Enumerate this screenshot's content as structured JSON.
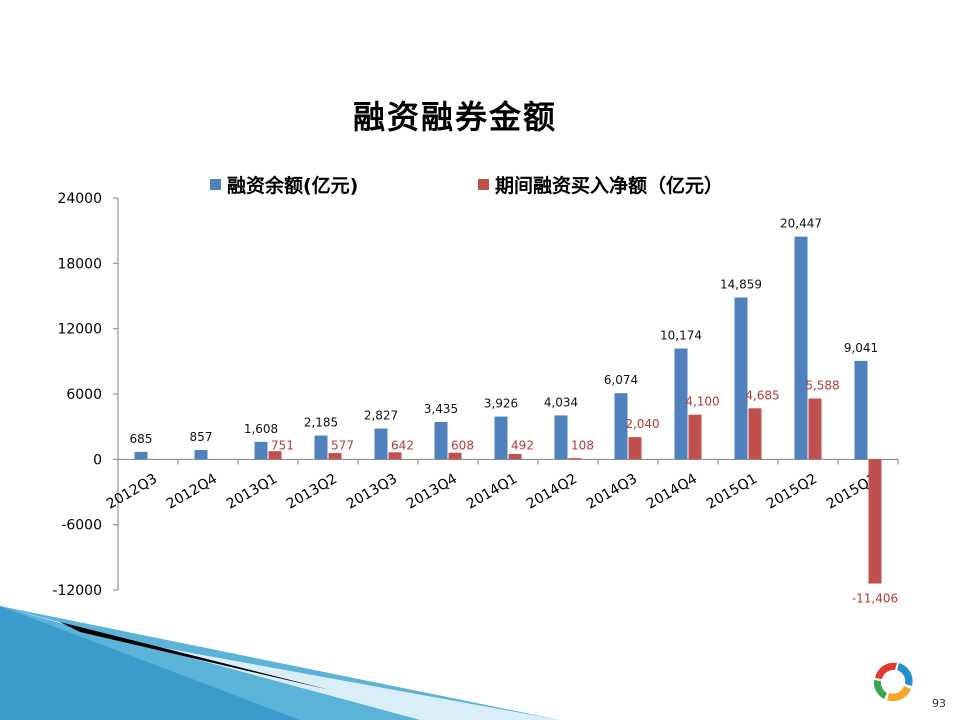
{
  "page": {
    "number": "93"
  },
  "colors": {
    "series1": "#4f81bd",
    "series2": "#c0504d",
    "axis": "#7f7f7f"
  },
  "icons": [
    "corner-swoosh-decoration",
    "logo-ring-icon"
  ],
  "chart_data": {
    "type": "bar",
    "title": "融资融券金额",
    "categories": [
      "2012Q3",
      "2012Q4",
      "2013Q1",
      "2013Q2",
      "2013Q3",
      "2013Q4",
      "2014Q1",
      "2014Q2",
      "2014Q3",
      "2014Q4",
      "2015Q1",
      "2015Q2",
      "2015Q3"
    ],
    "series": [
      {
        "name": "融资余额(亿元)",
        "values": [
          685,
          857,
          1608,
          2185,
          2827,
          3435,
          3926,
          4034,
          6074,
          10174,
          14859,
          20447,
          9041
        ],
        "labels": [
          "685",
          "857",
          "1,608",
          "2,185",
          "2,827",
          "3,435",
          "3,926",
          "4,034",
          "6,074",
          "10,174",
          "14,859",
          "20,447",
          "9,041"
        ]
      },
      {
        "name": "期间融资买入净额（亿元）",
        "values": [
          null,
          null,
          751,
          577,
          642,
          608,
          492,
          108,
          2040,
          4100,
          4685,
          5588,
          -11406
        ],
        "labels": [
          "",
          "",
          "751",
          "577",
          "642",
          "608",
          "492",
          "108",
          "2,040",
          "4,100",
          "4,685",
          "5,588",
          "-11,406"
        ]
      }
    ],
    "ylim": [
      -12000,
      24000
    ],
    "yticks": [
      24000,
      18000,
      12000,
      6000,
      0,
      -6000,
      -12000
    ],
    "ytick_labels": [
      "24000",
      "18000",
      "12000",
      "6000",
      "0",
      "-6000",
      "-12000"
    ],
    "xlabel": "",
    "ylabel": "",
    "legend": "top",
    "grid": false
  }
}
